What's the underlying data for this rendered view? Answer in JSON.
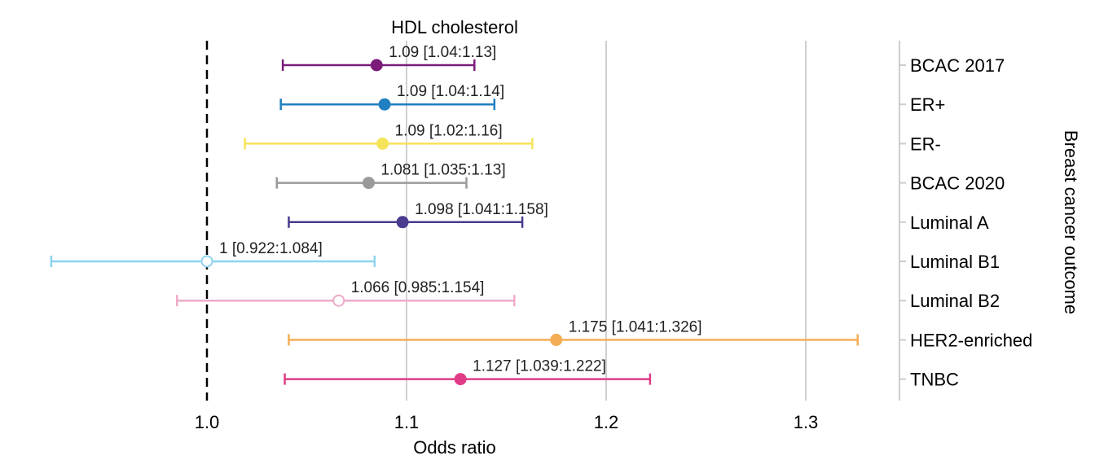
{
  "chart_data": {
    "type": "forest",
    "title": "HDL cholesterol",
    "xlabel": "Odds ratio",
    "ylabel": "Breast cancer outcome",
    "xlim": [
      0.922,
      1.33
    ],
    "xticks": [
      "1.0",
      "1.1",
      "1.2",
      "1.3"
    ],
    "xtick_values": [
      1.0,
      1.1,
      1.2,
      1.3
    ],
    "reference_line": 1.0,
    "grid": "vertical",
    "rows": [
      {
        "outcome": "BCAC 2017",
        "or": 1.085,
        "lower": 1.038,
        "upper": 1.134,
        "label": "1.09 [1.04:1.13]",
        "color": "#7b1c7b",
        "filled": true
      },
      {
        "outcome": "ER+",
        "or": 1.089,
        "lower": 1.037,
        "upper": 1.144,
        "label": "1.09 [1.04:1.14]",
        "color": "#1f7fc0",
        "filled": true
      },
      {
        "outcome": "ER-",
        "or": 1.088,
        "lower": 1.019,
        "upper": 1.163,
        "label": "1.09 [1.02:1.16]",
        "color": "#f5e35a",
        "filled": true
      },
      {
        "outcome": "BCAC 2020",
        "or": 1.081,
        "lower": 1.035,
        "upper": 1.13,
        "label": "1.081 [1.035:1.13]",
        "color": "#9a9a9a",
        "filled": true
      },
      {
        "outcome": "Luminal A",
        "or": 1.098,
        "lower": 1.041,
        "upper": 1.158,
        "label": "1.098 [1.041:1.158]",
        "color": "#4a3b8f",
        "filled": true
      },
      {
        "outcome": "Luminal B1",
        "or": 1.0,
        "lower": 0.922,
        "upper": 1.084,
        "label": "1 [0.922:1.084]",
        "color": "#8ed3ef",
        "filled": false
      },
      {
        "outcome": "Luminal B2",
        "or": 1.066,
        "lower": 0.985,
        "upper": 1.154,
        "label": "1.066 [0.985:1.154]",
        "color": "#eeabc9",
        "filled": false
      },
      {
        "outcome": "HER2-enriched",
        "or": 1.175,
        "lower": 1.041,
        "upper": 1.326,
        "label": "1.175 [1.041:1.326]",
        "color": "#f5ad55",
        "filled": true
      },
      {
        "outcome": "TNBC",
        "or": 1.127,
        "lower": 1.039,
        "upper": 1.222,
        "label": "1.127 [1.039:1.222]",
        "color": "#e03c86",
        "filled": true
      }
    ]
  }
}
